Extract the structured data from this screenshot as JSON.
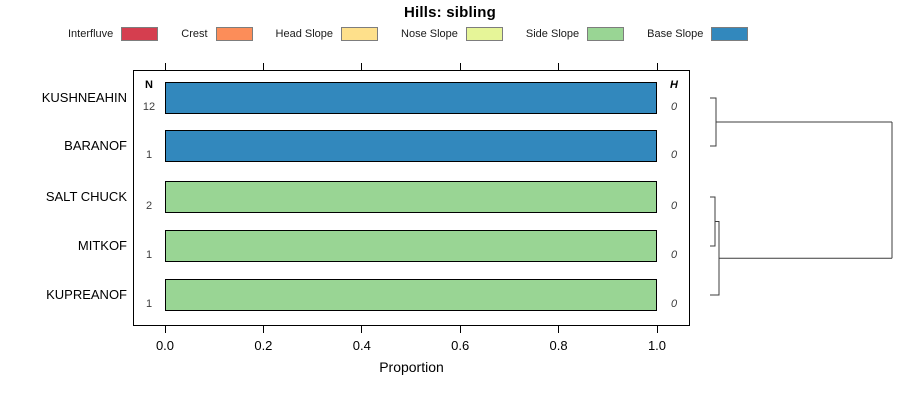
{
  "title": "Hills: sibling",
  "legend": {
    "items": [
      {
        "label": "Interfluve",
        "color": "#d53e4f"
      },
      {
        "label": "Crest",
        "color": "#fc8d59"
      },
      {
        "label": "Head Slope",
        "color": "#fee08b"
      },
      {
        "label": "Nose Slope",
        "color": "#e6f598"
      },
      {
        "label": "Side Slope",
        "color": "#99d594"
      },
      {
        "label": "Base Slope",
        "color": "#3288bd"
      }
    ]
  },
  "columns": {
    "n_header": "N",
    "h_header": "H"
  },
  "chart_data": {
    "type": "bar",
    "orientation": "horizontal-stacked-proportion",
    "title": "Hills: sibling",
    "xlabel": "Proportion",
    "xlim": [
      0,
      1
    ],
    "x_tick_labels": [
      "0.0",
      "0.2",
      "0.4",
      "0.6",
      "0.8",
      "1.0"
    ],
    "x_tick_values": [
      0,
      0.2,
      0.4,
      0.6,
      0.8,
      1.0
    ],
    "categories": [
      "KUSHNEAHIN",
      "BARANOF",
      "SALT CHUCK",
      "MITKOF",
      "KUPREANOF"
    ],
    "series": [
      {
        "name": "Interfluve",
        "values": [
          0,
          0,
          0,
          0,
          0
        ]
      },
      {
        "name": "Crest",
        "values": [
          0,
          0,
          0,
          0,
          0
        ]
      },
      {
        "name": "Head Slope",
        "values": [
          0,
          0,
          0,
          0,
          0
        ]
      },
      {
        "name": "Nose Slope",
        "values": [
          0,
          0,
          0,
          0,
          0
        ]
      },
      {
        "name": "Side Slope",
        "values": [
          0,
          0,
          1,
          1,
          1
        ]
      },
      {
        "name": "Base Slope",
        "values": [
          1,
          1,
          0,
          0,
          0
        ]
      }
    ],
    "n_values": [
      12,
      1,
      2,
      1,
      1
    ],
    "h_values": [
      0,
      0,
      0,
      0,
      0
    ],
    "grid": false,
    "legend_position": "top"
  },
  "dendrogram": {
    "merges": [
      {
        "children": [
          "KUSHNEAHIN",
          "BARANOF"
        ],
        "height": 0
      },
      {
        "children": [
          "SALT CHUCK",
          "MITKOF"
        ],
        "height": 0
      },
      {
        "children": [
          "SALT CHUCK+MITKOF",
          "KUPREANOF"
        ],
        "height": 0
      },
      {
        "children": [
          "KUSHNEAHIN+BARANOF",
          "SALT CHUCK+MITKOF+KUPREANOF"
        ],
        "height": 0
      }
    ]
  }
}
